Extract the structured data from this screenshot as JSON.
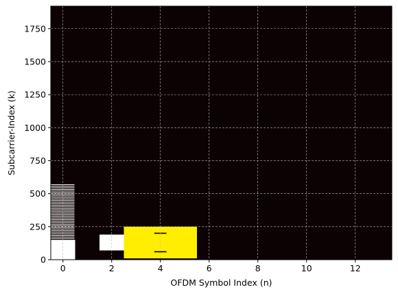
{
  "chart_data": {
    "type": "heatmap",
    "title": "",
    "xlabel": "OFDM Symbol Index (n)",
    "ylabel": "Subcarrier-Index (k)",
    "xlim": [
      -0.5,
      13.5
    ],
    "ylim": [
      0,
      1920
    ],
    "xticks": [
      0,
      2,
      4,
      6,
      8,
      10,
      12
    ],
    "yticks": [
      0,
      250,
      500,
      750,
      1000,
      1250,
      1500,
      1750
    ],
    "grid": true,
    "colors": {
      "background": "#0d0203",
      "pss_sss": "#ffffff",
      "pbch": "#ffee00",
      "marker": "#000000",
      "grid": "#bbbbbb"
    },
    "regions": [
      {
        "symbol_start": -0.5,
        "symbol_end": 0.5,
        "k_start": 0,
        "k_end": 150,
        "color": "#ffffff"
      },
      {
        "symbol_start": 1.5,
        "symbol_end": 2.5,
        "k_start": 70,
        "k_end": 190,
        "color": "#ffffff"
      },
      {
        "symbol_start": 2.5,
        "symbol_end": 5.5,
        "k_start": 10,
        "k_end": 250,
        "color": "#ffee00"
      },
      {
        "symbol_start": 3.5,
        "symbol_end": 4.5,
        "k_start": 50,
        "k_end": 210,
        "color": "#ffee00"
      }
    ],
    "symbol0_lines": {
      "symbol_start": -0.5,
      "symbol_end": 0.5,
      "k_start": 160,
      "k_end": 575,
      "spacing": 12,
      "color": "#ffffff"
    },
    "markers": [
      {
        "symbol": 4,
        "k": 200
      },
      {
        "symbol": 4,
        "k": 60
      }
    ]
  }
}
